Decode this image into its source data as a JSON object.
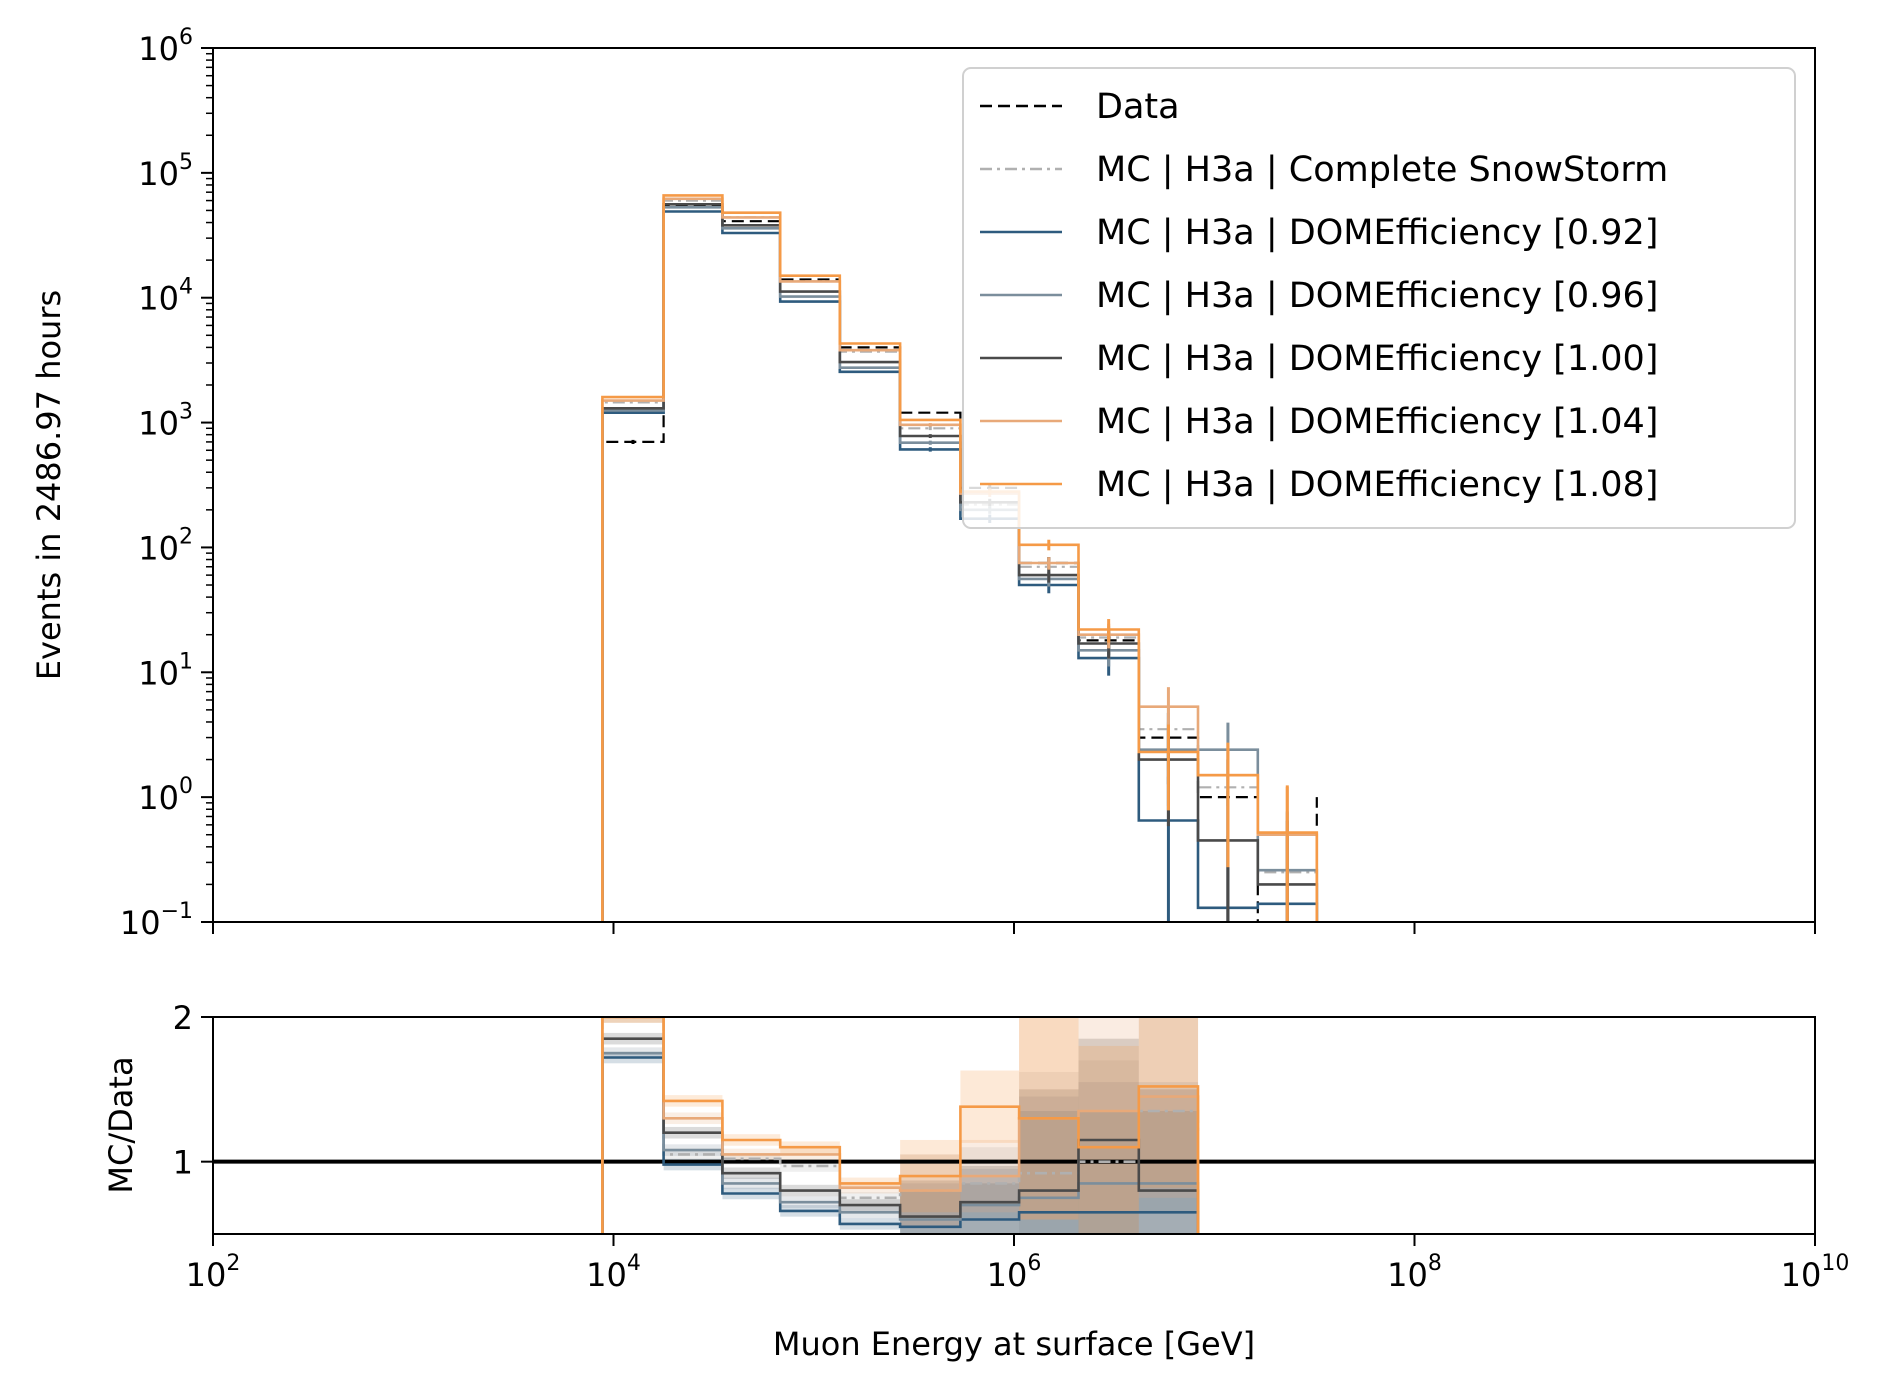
{
  "chart_data": [
    {
      "type": "line",
      "ylabel": "Events in 2486.97 hours",
      "xscale": "log",
      "yscale": "log",
      "xlim": [
        100,
        10000000000
      ],
      "ylim": [
        0.1,
        1000000
      ],
      "x_ticks": [
        {
          "base": "10",
          "exp": "2"
        },
        {
          "base": "10",
          "exp": "4"
        },
        {
          "base": "10",
          "exp": "6"
        },
        {
          "base": "10",
          "exp": "8"
        },
        {
          "base": "10",
          "exp": "10"
        }
      ],
      "y_ticks": [
        {
          "base": "10",
          "exp": "−1"
        },
        {
          "base": "10",
          "exp": "0"
        },
        {
          "base": "10",
          "exp": "1"
        },
        {
          "base": "10",
          "exp": "2"
        },
        {
          "base": "10",
          "exp": "3"
        },
        {
          "base": "10",
          "exp": "4"
        },
        {
          "base": "10",
          "exp": "5"
        },
        {
          "base": "10",
          "exp": "6"
        }
      ],
      "grid": false,
      "legend_position": "top-right",
      "bin_edges": [
        8800,
        17800,
        35000,
        68000,
        135000,
        270000,
        540000,
        1060000,
        2100000,
        4200000,
        8300000,
        16500000,
        32500000
      ],
      "series": [
        {
          "name": "Data",
          "color": "#000000",
          "style": "dashed",
          "values": [
            700,
            55000,
            41000,
            14000,
            4000,
            1200,
            300,
            75,
            18,
            3,
            1,
            0,
            1
          ]
        },
        {
          "name": "MC | H3a | Complete SnowStorm",
          "color": "#b0b0b0",
          "style": "dashdot",
          "values": [
            1450,
            60000,
            44000,
            13500,
            3700,
            900,
            220,
            70,
            19,
            3.5,
            1.2,
            0.25,
            null
          ]
        },
        {
          "name": "MC | H3a | DOMEfficiency [0.92]",
          "color": "#2e5b7e",
          "style": "solid",
          "values": [
            1200,
            49000,
            33000,
            9300,
            2550,
            610,
            170,
            50,
            13,
            0.65,
            0.13,
            0.14,
            null
          ]
        },
        {
          "name": "MC | H3a | DOMEfficiency [0.96]",
          "color": "#7b8e9c",
          "style": "solid",
          "values": [
            1250,
            53000,
            36000,
            10200,
            2750,
            690,
            200,
            56,
            15,
            2.4,
            2.4,
            0.26,
            null
          ]
        },
        {
          "name": "MC | H3a | DOMEfficiency [1.00]",
          "color": "#4a4a4a",
          "style": "solid",
          "values": [
            1300,
            56000,
            38000,
            11200,
            3050,
            780,
            230,
            60,
            17,
            2.0,
            0.45,
            0.2,
            null
          ]
        },
        {
          "name": "MC | H3a | DOMEfficiency [1.04]",
          "color": "#e8a979",
          "style": "solid",
          "values": [
            1500,
            62000,
            44000,
            13500,
            3800,
            960,
            270,
            75,
            20,
            5.3,
            1.5,
            0.5,
            null
          ]
        },
        {
          "name": "MC | H3a | DOMEfficiency [1.08]",
          "color": "#f59a47",
          "style": "solid",
          "values": [
            1600,
            66000,
            48000,
            15000,
            4300,
            1050,
            280,
            105,
            22,
            2.3,
            1.5,
            0.52,
            null
          ]
        }
      ]
    },
    {
      "type": "line",
      "xlabel": "Muon Energy at surface [GeV]",
      "ylabel": "MC/Data",
      "xscale": "log",
      "xlim": [
        100,
        10000000000
      ],
      "ylim": [
        0.5,
        2
      ],
      "y_ticks": [
        "1",
        "2"
      ],
      "reference_line": 1,
      "bin_edges": [
        8800,
        17800,
        35000,
        68000,
        135000,
        270000,
        540000,
        1060000,
        2100000,
        4200000,
        8300000
      ],
      "series": [
        {
          "name": "MC | H3a | Complete SnowStorm",
          "color": "#b0b0b0",
          "style": "dashdot",
          "values": [
            2.0,
            1.05,
            1.02,
            0.97,
            0.75,
            0.8,
            0.85,
            0.92,
            1.0,
            1.35,
            1.2
          ]
        },
        {
          "name": "MC | H3a | DOMEfficiency [0.92]",
          "color": "#2e5b7e",
          "style": "solid",
          "values": [
            1.72,
            0.98,
            0.78,
            0.66,
            0.57,
            0.55,
            0.6,
            0.65,
            0.65,
            0.65,
            null
          ]
        },
        {
          "name": "MC | H3a | DOMEfficiency [0.96]",
          "color": "#7b8e9c",
          "style": "solid",
          "values": [
            1.75,
            1.08,
            0.85,
            0.72,
            0.65,
            0.6,
            0.7,
            0.75,
            0.85,
            0.85,
            null
          ]
        },
        {
          "name": "MC | H3a | DOMEfficiency [1.00]",
          "color": "#4a4a4a",
          "style": "solid",
          "values": [
            1.85,
            1.2,
            0.92,
            0.8,
            0.7,
            0.62,
            0.72,
            0.8,
            1.15,
            0.8,
            null
          ]
        },
        {
          "name": "MC | H3a | DOMEfficiency [1.04]",
          "color": "#e8a979",
          "style": "solid",
          "values": [
            2.0,
            1.3,
            1.05,
            1.05,
            0.82,
            0.8,
            0.9,
            1.3,
            1.35,
            1.45,
            null
          ]
        },
        {
          "name": "MC | H3a | DOMEfficiency [1.08]",
          "color": "#f59a47",
          "style": "solid",
          "values": [
            2.0,
            1.42,
            1.15,
            1.1,
            0.85,
            0.9,
            1.38,
            1.3,
            1.1,
            1.52,
            null
          ]
        }
      ]
    }
  ]
}
